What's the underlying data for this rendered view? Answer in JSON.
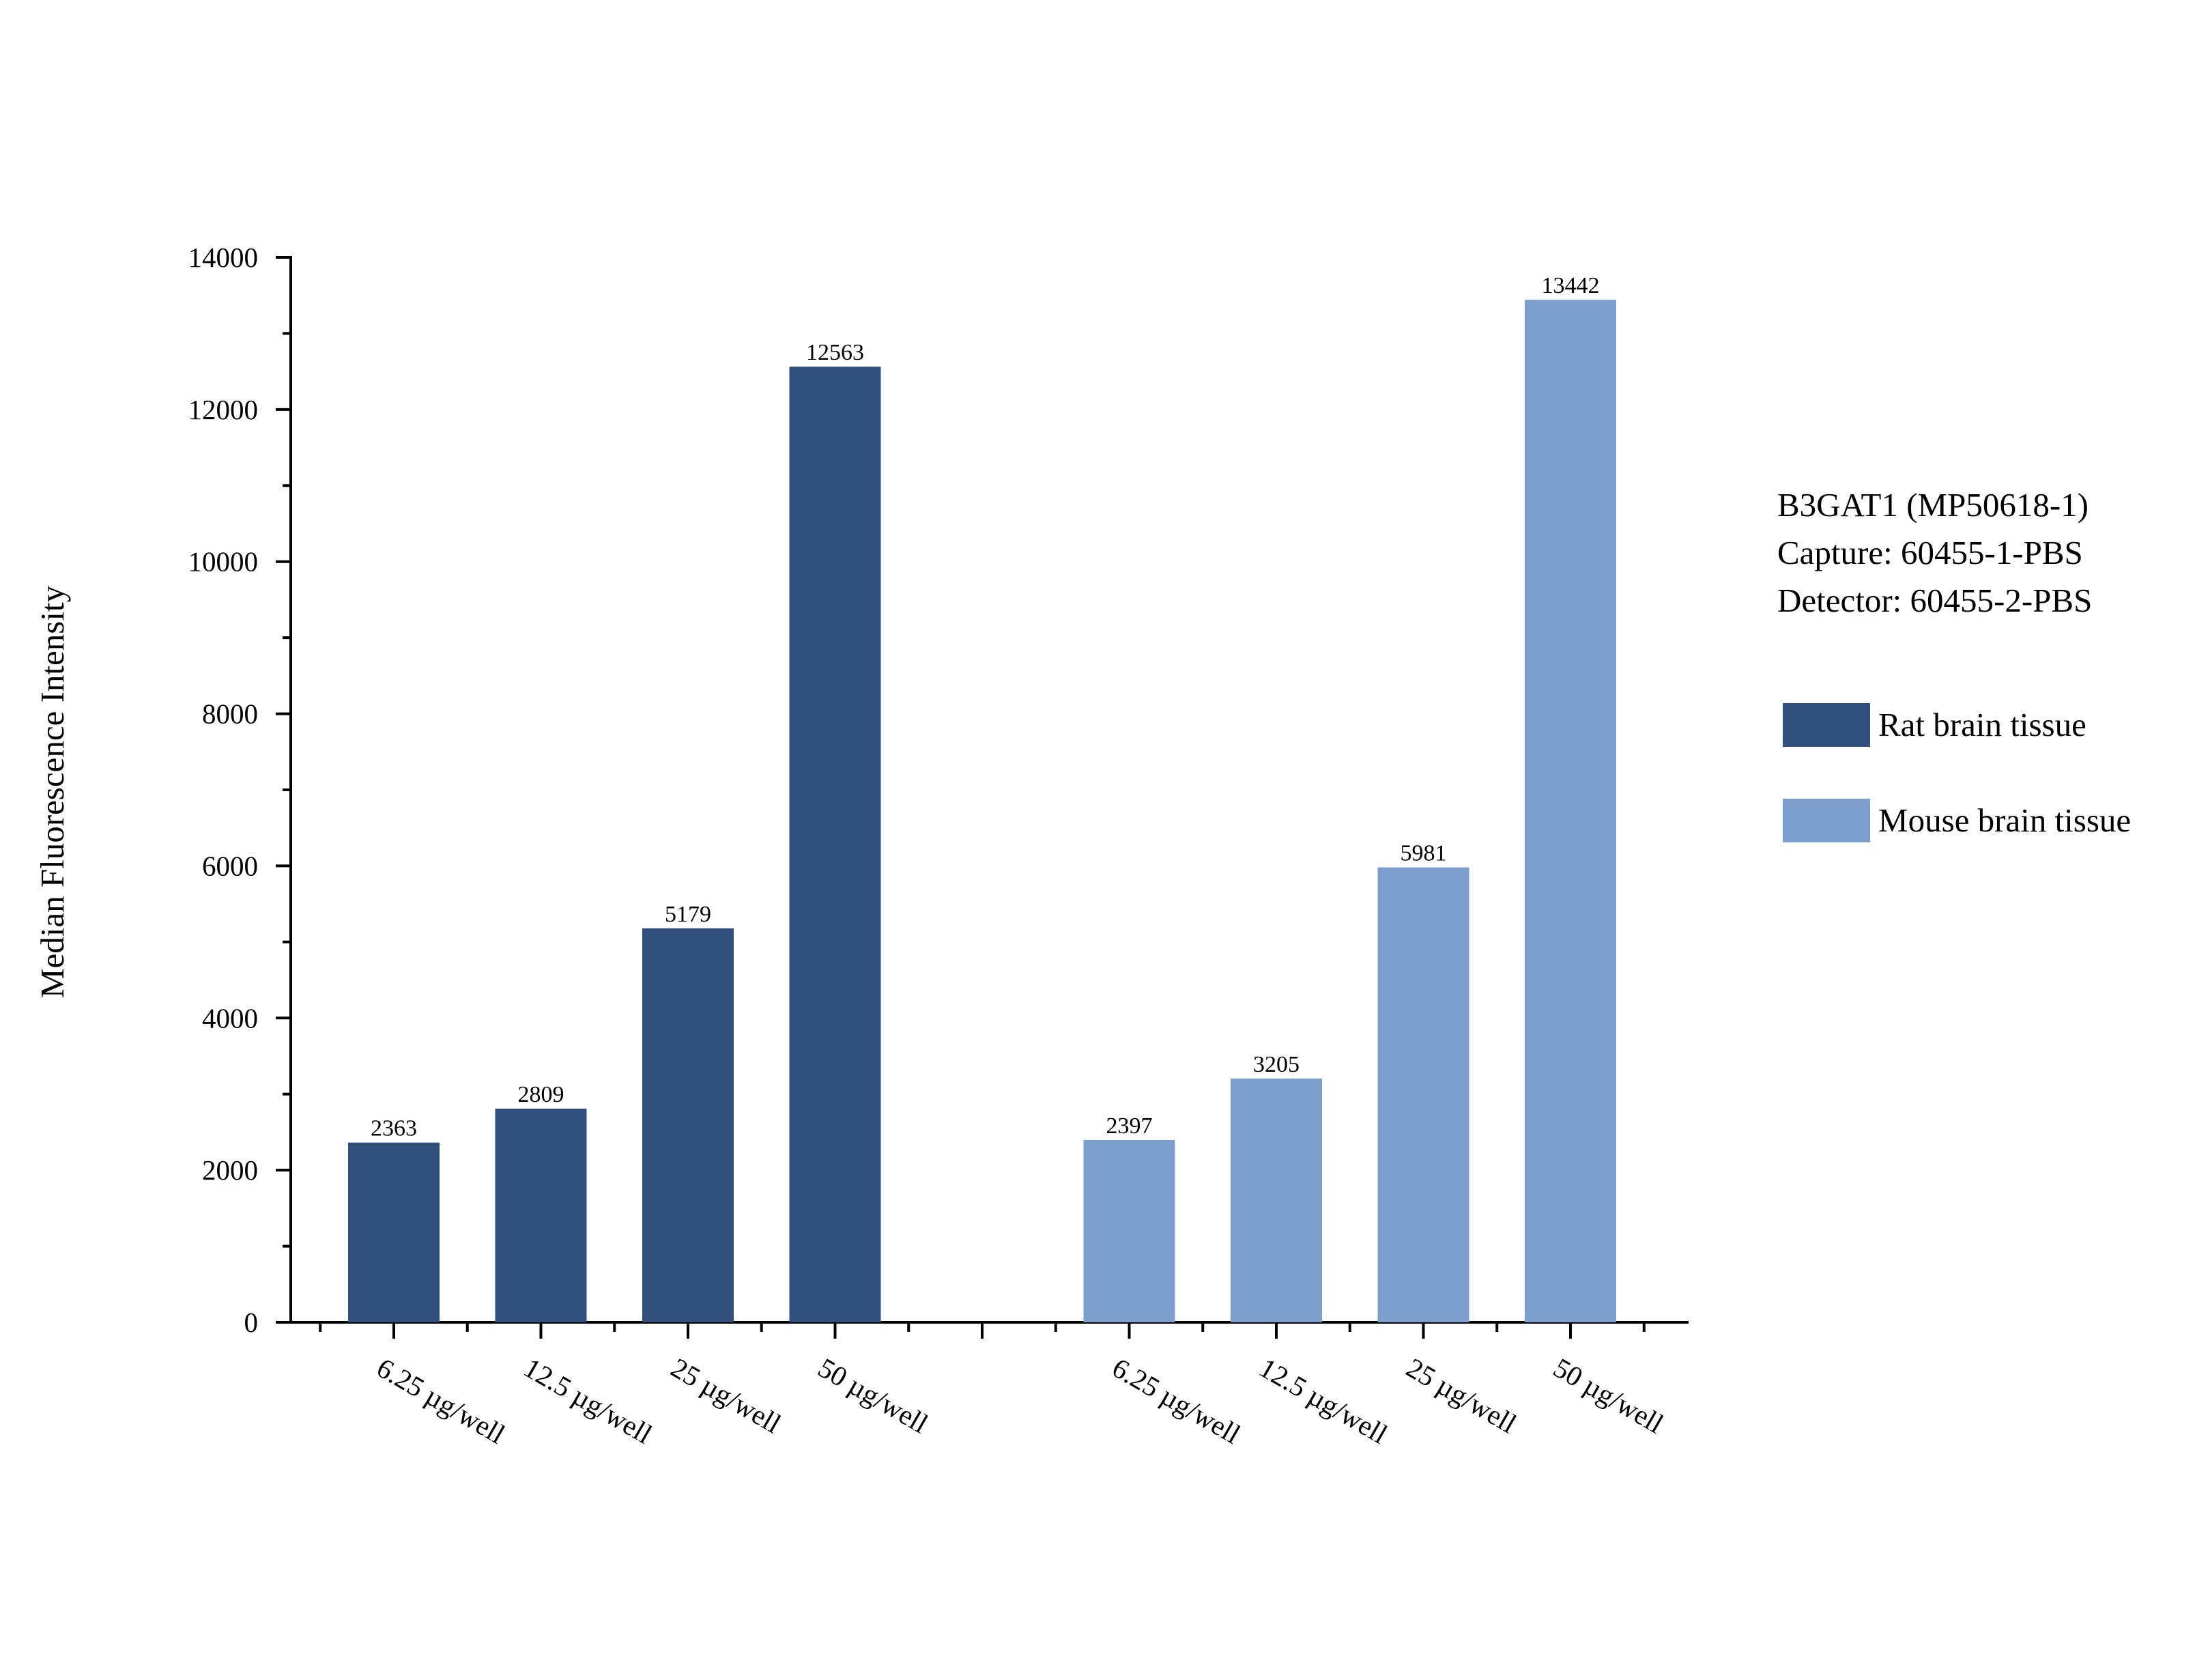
{
  "chart_data": {
    "type": "bar",
    "ylabel": "Median Fluorescence Intensity",
    "ylim": [
      0,
      14000
    ],
    "yticks": [
      0,
      2000,
      4000,
      6000,
      8000,
      10000,
      12000,
      14000
    ],
    "legend_position": "right",
    "annotation": [
      "B3GAT1 (MP50618-1)",
      "Capture: 60455-1-PBS",
      "Detector: 60455-2-PBS"
    ],
    "series": [
      {
        "name": "Rat brain tissue",
        "color": "#304f7a",
        "categories": [
          "6.25 µg/well",
          "12.5 µg/well",
          "25 µg/well",
          "50 µg/well"
        ],
        "values": [
          2363,
          2809,
          5179,
          12563
        ]
      },
      {
        "name": "Mouse brain tissue",
        "color": "#7d9fcd",
        "categories": [
          "6.25 µg/well",
          "12.5 µg/well",
          "25 µg/well",
          "50 µg/well"
        ],
        "values": [
          2397,
          3205,
          5981,
          13442
        ]
      }
    ]
  }
}
